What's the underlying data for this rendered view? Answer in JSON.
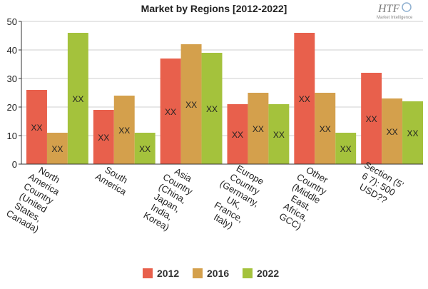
{
  "chart_data": {
    "type": "bar",
    "title": "Market by Regions [2012-2022]",
    "categories": [
      [
        "North",
        "America",
        "Country",
        "(United",
        "States,",
        "Canada)"
      ],
      [
        "South",
        "America"
      ],
      [
        "Asia",
        "Country",
        "(China,",
        "Japan,",
        "India,",
        "Korea)"
      ],
      [
        "Europe",
        "Country",
        "(Germany,",
        "UK,",
        "France,",
        "Italy)"
      ],
      [
        "Other",
        "Country",
        "(Middle",
        "East,",
        "Africa,",
        "GCC)"
      ],
      [
        "Section (5'",
        "6 7): 500",
        "USD??"
      ]
    ],
    "series": [
      {
        "name": "2012",
        "color": "#e8604c",
        "values": [
          26,
          19,
          37,
          21,
          46,
          32
        ]
      },
      {
        "name": "2016",
        "color": "#d4a04c",
        "values": [
          11,
          24,
          42,
          25,
          25,
          23
        ]
      },
      {
        "name": "2022",
        "color": "#a4c23c",
        "values": [
          46,
          11,
          39,
          21,
          11,
          22
        ]
      }
    ],
    "data_label_text": "XX",
    "ylim": [
      0,
      50
    ],
    "yticks": [
      0,
      10,
      20,
      30,
      40,
      50
    ],
    "grid": true,
    "legend_position": "bottom"
  },
  "logo": {
    "text": "HTF",
    "subtitle": "Market Intelligence"
  }
}
